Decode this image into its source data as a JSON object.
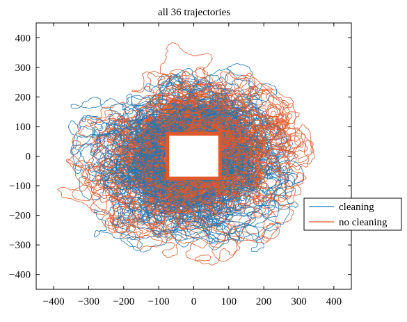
{
  "chart_data": {
    "type": "line",
    "title": "all 36 trajectories",
    "xlabel": "",
    "ylabel": "",
    "xlim": [
      -450,
      450
    ],
    "ylim": [
      -450,
      450
    ],
    "x_ticks": [
      -400,
      -300,
      -200,
      -100,
      0,
      100,
      200,
      300,
      400
    ],
    "y_ticks": [
      -400,
      -300,
      -200,
      -100,
      0,
      100,
      200,
      300,
      400
    ],
    "x_tick_labels": [
      "−400",
      "−300",
      "−200",
      "−100",
      "0",
      "100",
      "200",
      "300",
      "400"
    ],
    "y_tick_labels": [
      "−400",
      "−300",
      "−200",
      "−100",
      "0",
      "100",
      "200",
      "300",
      "400"
    ],
    "grid": false,
    "legend_position": "right",
    "trajectory_count": 36,
    "obstacle": {
      "x": [
        -75,
        75
      ],
      "y": [
        -75,
        75
      ]
    },
    "series": [
      {
        "name": "cleaning",
        "color": "#1f77b4",
        "trajectory_count": 18
      },
      {
        "name": "no cleaning",
        "color": "#e0592a",
        "trajectory_count": 18
      }
    ]
  }
}
